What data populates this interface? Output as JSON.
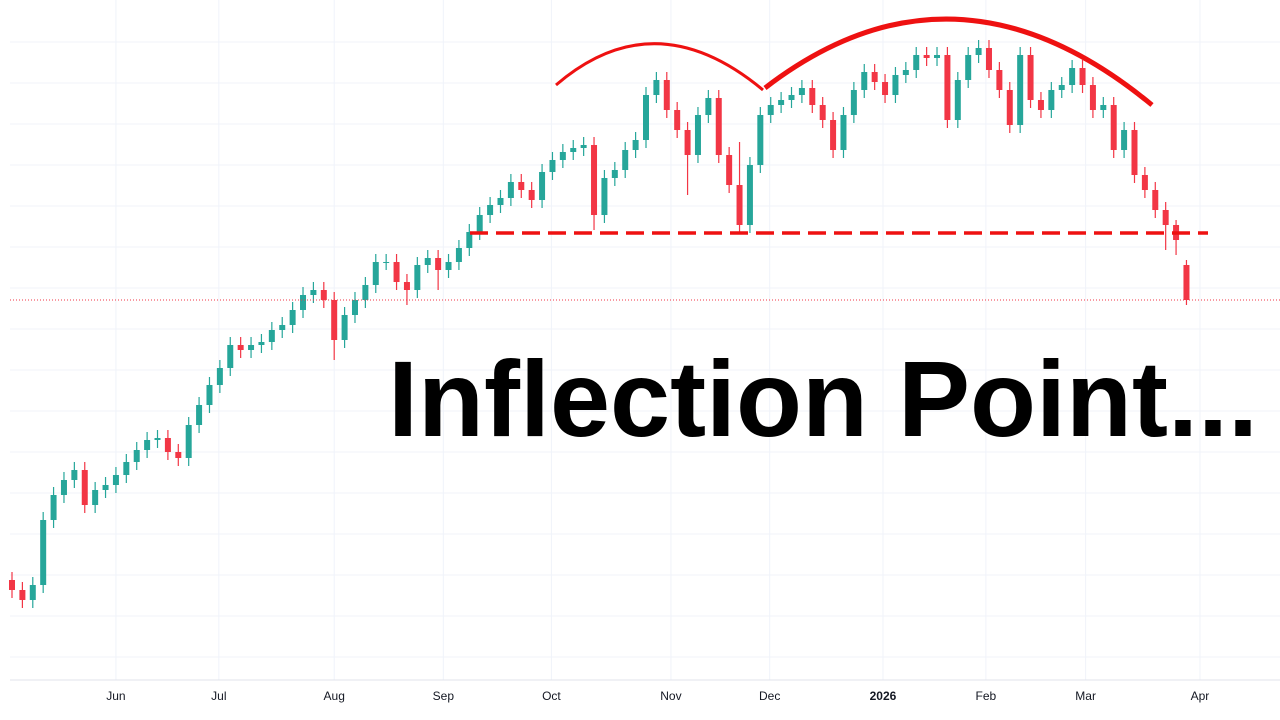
{
  "chart_data": {
    "type": "candlestick",
    "annotation": "Inflection Point...",
    "up_color": "#26a69a",
    "down_color": "#f23645",
    "grid": true,
    "support_level": 487,
    "xlim": [
      0,
      122
    ],
    "ylim": [
      10,
      710
    ],
    "xticks": [
      {
        "value": 10,
        "label": "Jun"
      },
      {
        "value": 19.9,
        "label": "Jul"
      },
      {
        "value": 31,
        "label": "Aug"
      },
      {
        "value": 41.5,
        "label": "Sep"
      },
      {
        "value": 51.9,
        "label": "Oct"
      },
      {
        "value": 63.4,
        "label": "Nov"
      },
      {
        "value": 72.9,
        "label": "Dec"
      },
      {
        "value": 83.8,
        "label": "2026"
      },
      {
        "value": 93.7,
        "label": "Feb"
      },
      {
        "value": 103.3,
        "label": "Mar"
      },
      {
        "value": 114.3,
        "label": "Apr"
      }
    ],
    "x": [
      0,
      1,
      2,
      3,
      4,
      5,
      6,
      7,
      8,
      9,
      10,
      11,
      12,
      13,
      14,
      15,
      16,
      17,
      18,
      19,
      20,
      21,
      22,
      23,
      24,
      25,
      26,
      27,
      28,
      29,
      30,
      31,
      32,
      33,
      34,
      35,
      36,
      37,
      38,
      39,
      40,
      41,
      42,
      43,
      44,
      45,
      46,
      47,
      48,
      49,
      50,
      51,
      52,
      53,
      54,
      55,
      56,
      57,
      58,
      59,
      60,
      61,
      62,
      63,
      64,
      65,
      66,
      67,
      68,
      69,
      70,
      71,
      72,
      73,
      74,
      75,
      76,
      77,
      78,
      79,
      80,
      81,
      82,
      83,
      84,
      85,
      86,
      87,
      88,
      89,
      90,
      91,
      92,
      93,
      94,
      95,
      96,
      97,
      98,
      99,
      100,
      101,
      102,
      103,
      104,
      105,
      106,
      107,
      108,
      109,
      110,
      111,
      112,
      113
    ],
    "open": [
      140,
      130,
      120,
      135,
      200,
      225,
      240,
      250,
      215,
      230,
      235,
      245,
      258,
      270,
      280,
      282,
      268,
      262,
      295,
      315,
      335,
      352,
      375,
      370,
      375,
      378,
      390,
      395,
      410,
      425,
      430,
      420,
      380,
      405,
      420,
      435,
      458,
      458,
      438,
      430,
      455,
      462,
      450,
      458,
      472,
      488,
      505,
      515,
      522,
      538,
      530,
      520,
      548,
      560,
      568,
      572,
      575,
      505,
      542,
      550,
      570,
      580,
      625,
      640,
      610,
      590,
      565,
      605,
      622,
      565,
      535,
      495,
      555,
      605,
      615,
      620,
      625,
      632,
      615,
      600,
      570,
      605,
      630,
      648,
      638,
      625,
      645,
      650,
      665,
      662,
      665,
      600,
      640,
      665,
      672,
      650,
      630,
      595,
      665,
      620,
      610,
      630,
      635,
      652,
      635,
      610,
      615,
      570,
      590,
      545,
      530,
      510,
      495,
      455
    ],
    "high": [
      148,
      138,
      143,
      208,
      233,
      248,
      258,
      258,
      238,
      243,
      253,
      266,
      278,
      288,
      290,
      290,
      276,
      303,
      323,
      343,
      360,
      383,
      383,
      383,
      386,
      398,
      403,
      418,
      433,
      438,
      438,
      428,
      413,
      428,
      443,
      466,
      466,
      466,
      446,
      463,
      470,
      470,
      466,
      480,
      496,
      513,
      523,
      530,
      546,
      546,
      538,
      556,
      568,
      576,
      580,
      583,
      583,
      550,
      558,
      578,
      588,
      633,
      648,
      648,
      618,
      598,
      613,
      630,
      630,
      573,
      578,
      563,
      613,
      623,
      628,
      633,
      640,
      640,
      623,
      608,
      613,
      638,
      656,
      656,
      646,
      653,
      658,
      673,
      673,
      673,
      673,
      648,
      673,
      680,
      680,
      658,
      638,
      673,
      673,
      628,
      638,
      643,
      660,
      660,
      643,
      623,
      623,
      598,
      598,
      553,
      538,
      518,
      500,
      460
    ],
    "low": [
      122,
      112,
      112,
      127,
      192,
      217,
      232,
      207,
      207,
      222,
      227,
      237,
      250,
      262,
      272,
      260,
      254,
      254,
      287,
      307,
      327,
      344,
      362,
      362,
      367,
      370,
      382,
      387,
      402,
      417,
      412,
      360,
      372,
      397,
      412,
      427,
      450,
      430,
      415,
      422,
      447,
      430,
      442,
      450,
      464,
      480,
      497,
      507,
      514,
      522,
      512,
      512,
      540,
      552,
      560,
      564,
      490,
      497,
      534,
      542,
      562,
      572,
      617,
      602,
      582,
      525,
      557,
      597,
      557,
      527,
      487,
      487,
      547,
      597,
      607,
      612,
      617,
      607,
      592,
      562,
      562,
      597,
      622,
      630,
      617,
      617,
      637,
      642,
      654,
      654,
      592,
      592,
      632,
      657,
      642,
      622,
      587,
      587,
      612,
      602,
      602,
      622,
      627,
      627,
      602,
      602,
      562,
      562,
      537,
      522,
      502,
      470,
      465,
      415
    ],
    "close": [
      130,
      120,
      135,
      200,
      225,
      240,
      250,
      215,
      230,
      235,
      245,
      258,
      270,
      280,
      282,
      268,
      262,
      295,
      315,
      335,
      352,
      375,
      370,
      375,
      378,
      390,
      395,
      410,
      425,
      430,
      420,
      380,
      405,
      420,
      435,
      458,
      458,
      438,
      430,
      455,
      462,
      450,
      458,
      472,
      488,
      505,
      515,
      522,
      538,
      530,
      520,
      548,
      560,
      568,
      572,
      575,
      505,
      542,
      550,
      570,
      580,
      625,
      640,
      610,
      590,
      565,
      605,
      622,
      565,
      535,
      495,
      555,
      605,
      615,
      620,
      625,
      632,
      615,
      600,
      570,
      605,
      630,
      648,
      638,
      625,
      645,
      650,
      665,
      662,
      665,
      600,
      640,
      665,
      672,
      650,
      630,
      595,
      665,
      620,
      610,
      630,
      635,
      652,
      635,
      610,
      615,
      570,
      590,
      545,
      530,
      510,
      495,
      480,
      420
    ]
  }
}
